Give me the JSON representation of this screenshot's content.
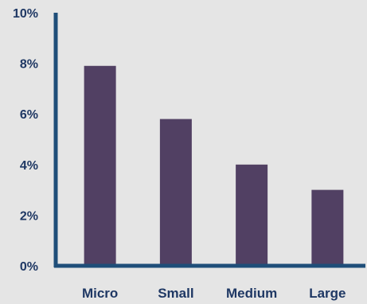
{
  "chart_data": {
    "type": "bar",
    "title": "",
    "xlabel": "",
    "ylabel": "",
    "categories": [
      "Micro",
      "Small",
      "Medium",
      "Large"
    ],
    "series": [
      {
        "values": [
          7.9,
          5.8,
          4.0,
          3.0
        ]
      }
    ],
    "ylim": [
      0,
      10
    ],
    "y_ticks": [
      "0%",
      "2%",
      "4%",
      "6%",
      "8%",
      "10%"
    ],
    "grid": false,
    "legend": "none",
    "colors": {
      "bar": "#514063",
      "axis": "#1f4e79",
      "text": "#1f3864",
      "background": "#e5e5e5"
    }
  }
}
